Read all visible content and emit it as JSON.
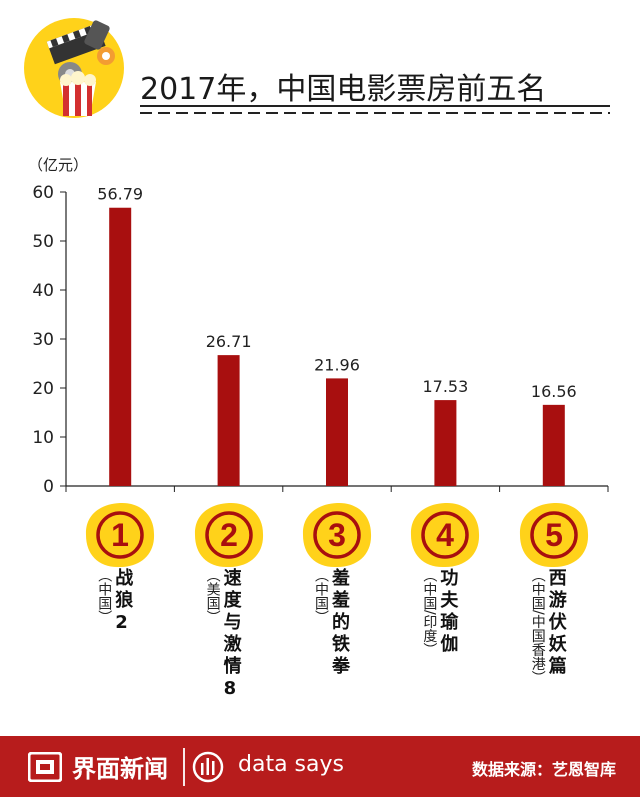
{
  "title": "2017年，中国电影票房前五名",
  "colors": {
    "bar": "#a80f0f",
    "footer": "#b71c1c",
    "badge_fill": "#ffd21a",
    "badge_ring": "#a80f0f"
  },
  "chart_data": {
    "type": "bar",
    "title": "2017年，中国电影票房前五名",
    "ylabel": "（亿元）",
    "ylim": [
      0,
      60
    ],
    "yticks": [
      0,
      10,
      20,
      30,
      40,
      50,
      60
    ],
    "categories": [
      "战狼2",
      "速度与激情8",
      "羞羞的铁拳",
      "功夫瑜伽",
      "西游伏妖篇"
    ],
    "values": [
      56.79,
      26.71,
      21.96,
      17.53,
      16.56
    ],
    "value_labels": [
      "56.79",
      "26.71",
      "21.96",
      "17.53",
      "16.56"
    ],
    "ranks": [
      "1",
      "2",
      "3",
      "4",
      "5"
    ],
    "origins": [
      "（中国）",
      "（美国）",
      "（中国）",
      "（中国/印度）",
      "（中国/中国香港）"
    ],
    "grid": false
  },
  "footer": {
    "brand": "界面新闻",
    "tagline": "data says",
    "source": "数据来源：艺恩智库"
  }
}
